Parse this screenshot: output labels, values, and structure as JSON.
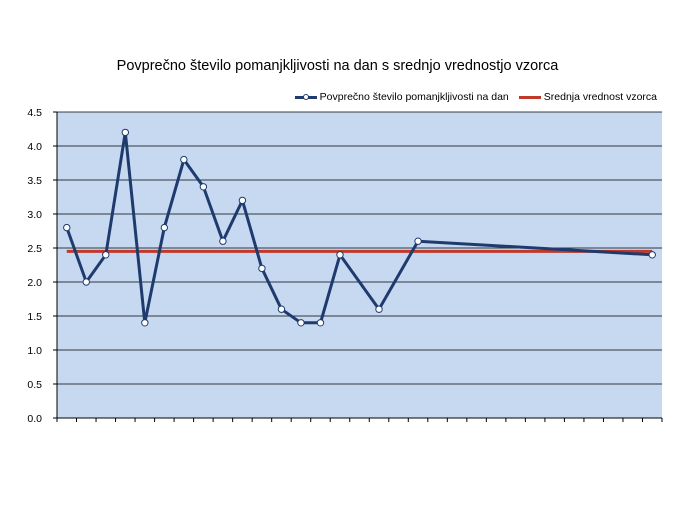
{
  "chart_data": {
    "type": "line",
    "title": "Povprečno število pomanjkljivosti na dan s srednjo vrednostjo vzorca",
    "xlabel": "",
    "ylabel": "",
    "ylim": [
      0,
      4.5
    ],
    "yticks": [
      "0.0",
      "0.5",
      "1.0",
      "1.5",
      "2.0",
      "2.5",
      "3.0",
      "3.5",
      "4.0",
      "4.5"
    ],
    "x_slots": 31,
    "grid": true,
    "legend_position": "top-right",
    "series": [
      {
        "name": "Povprečno število pomanjkljivosti na dan",
        "color": "#1f3b6e",
        "marker": "circle",
        "x": [
          1,
          2,
          3,
          4,
          5,
          6,
          7,
          8,
          9,
          10,
          11,
          12,
          13,
          14,
          15,
          16,
          17,
          18,
          19,
          20,
          21,
          22,
          23,
          24,
          25,
          26,
          27,
          28,
          29,
          30,
          31
        ],
        "values": [
          2.8,
          2.0,
          2.4,
          4.2,
          1.4,
          2.8,
          3.8,
          3.4,
          2.6,
          3.2,
          2.2,
          1.6,
          1.4,
          1.4,
          2.4,
          null,
          1.6,
          null,
          2.6,
          null,
          null,
          null,
          null,
          null,
          null,
          null,
          null,
          null,
          null,
          null,
          2.4
        ]
      },
      {
        "name": "Srednja vrednost vzorca",
        "color": "#c0392b",
        "constant": 2.45
      }
    ]
  }
}
